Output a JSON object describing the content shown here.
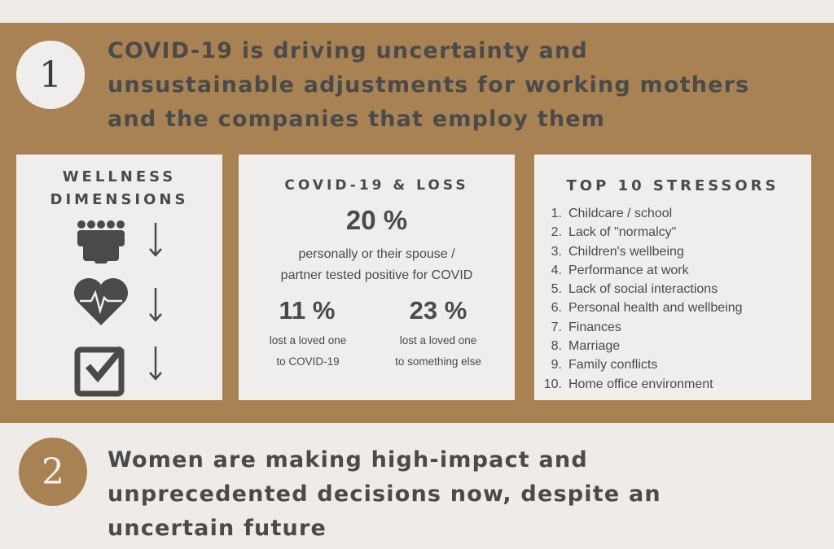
{
  "section1": {
    "number": "1",
    "heading_lines": [
      "COVID-19 is driving uncertainty and",
      "unsustainable adjustments for working mothers",
      "and the companies that employ them"
    ],
    "wellness": {
      "title_lines": [
        "WELLNESS",
        "DIMENSIONS"
      ]
    },
    "loss": {
      "title": "COVID-19 & LOSS",
      "main_stat": "20 %",
      "main_lines": [
        "personally or their spouse /",
        "partner tested positive for COVID"
      ],
      "stats": [
        {
          "value": "11 %",
          "lines": [
            "lost a loved one",
            "to COVID-19"
          ]
        },
        {
          "value": "23 %",
          "lines": [
            "lost a loved one",
            "to something else"
          ]
        }
      ]
    },
    "stressors": {
      "title": "TOP 10 STRESSORS",
      "items": [
        {
          "num": "1.",
          "text": "Childcare / school"
        },
        {
          "num": "2.",
          "text": "Lack of \"normalcy\""
        },
        {
          "num": "3.",
          "text": "Children's wellbeing"
        },
        {
          "num": "4.",
          "text": "Performance at work"
        },
        {
          "num": "5.",
          "text": "Lack of social interactions"
        },
        {
          "num": "6.",
          "text": "Personal health and wellbeing"
        },
        {
          "num": "7.",
          "text": "Finances"
        },
        {
          "num": "8.",
          "text": "Marriage"
        },
        {
          "num": "9.",
          "text": "Family conflicts"
        },
        {
          "num": "10.",
          "text": "Home office environment"
        }
      ]
    }
  },
  "section2": {
    "number": "2",
    "heading_lines": [
      "Women are making high-impact and",
      "unprecedented decisions now, despite an",
      "uncertain future"
    ]
  }
}
